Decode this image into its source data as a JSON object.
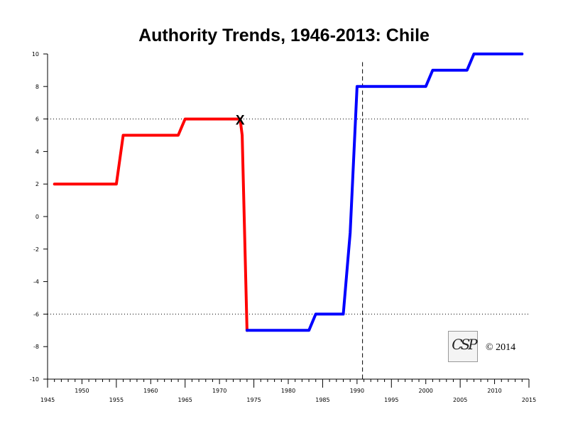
{
  "chart_data": {
    "type": "line",
    "title": "Authority Trends, 1946-2013: Chile",
    "xlabel": "",
    "ylabel": "",
    "xlim": [
      1945,
      2015
    ],
    "ylim": [
      -10,
      10
    ],
    "x_ticks_major": [
      1945,
      1955,
      1965,
      1975,
      1985,
      1995,
      2005,
      2015
    ],
    "x_ticks_minor_labeled": [
      1950,
      1960,
      1970,
      1980,
      1990,
      2000,
      2010
    ],
    "y_ticks": [
      -10,
      -8,
      -6,
      -4,
      -2,
      0,
      2,
      4,
      6,
      8,
      10
    ],
    "reference_lines": [
      6,
      -6
    ],
    "event_marker_year": 1990.8,
    "series": [
      {
        "color": "#ff0000",
        "points": [
          [
            1946,
            2
          ],
          [
            1955,
            2
          ],
          [
            1956,
            5
          ],
          [
            1964,
            5
          ],
          [
            1965,
            6
          ],
          [
            1973,
            6
          ],
          [
            1973.3,
            5
          ],
          [
            1974,
            -7
          ]
        ]
      },
      {
        "color": "#0000ff",
        "points": [
          [
            1974,
            -7
          ],
          [
            1983,
            -7
          ],
          [
            1984,
            -6
          ],
          [
            1988,
            -6
          ],
          [
            1989,
            -1
          ],
          [
            1990,
            8
          ],
          [
            2000,
            8
          ],
          [
            2001,
            9
          ],
          [
            2006,
            9
          ],
          [
            2007,
            10
          ],
          [
            2014,
            10
          ]
        ]
      }
    ],
    "annotations": [
      {
        "text": "X",
        "x": 1973,
        "y": 6
      }
    ],
    "grid": false
  },
  "footer": {
    "logo_text": "CSP",
    "copyright": "© 2014"
  },
  "colors": {
    "axis": "#000000",
    "reference_line": "#000000"
  }
}
